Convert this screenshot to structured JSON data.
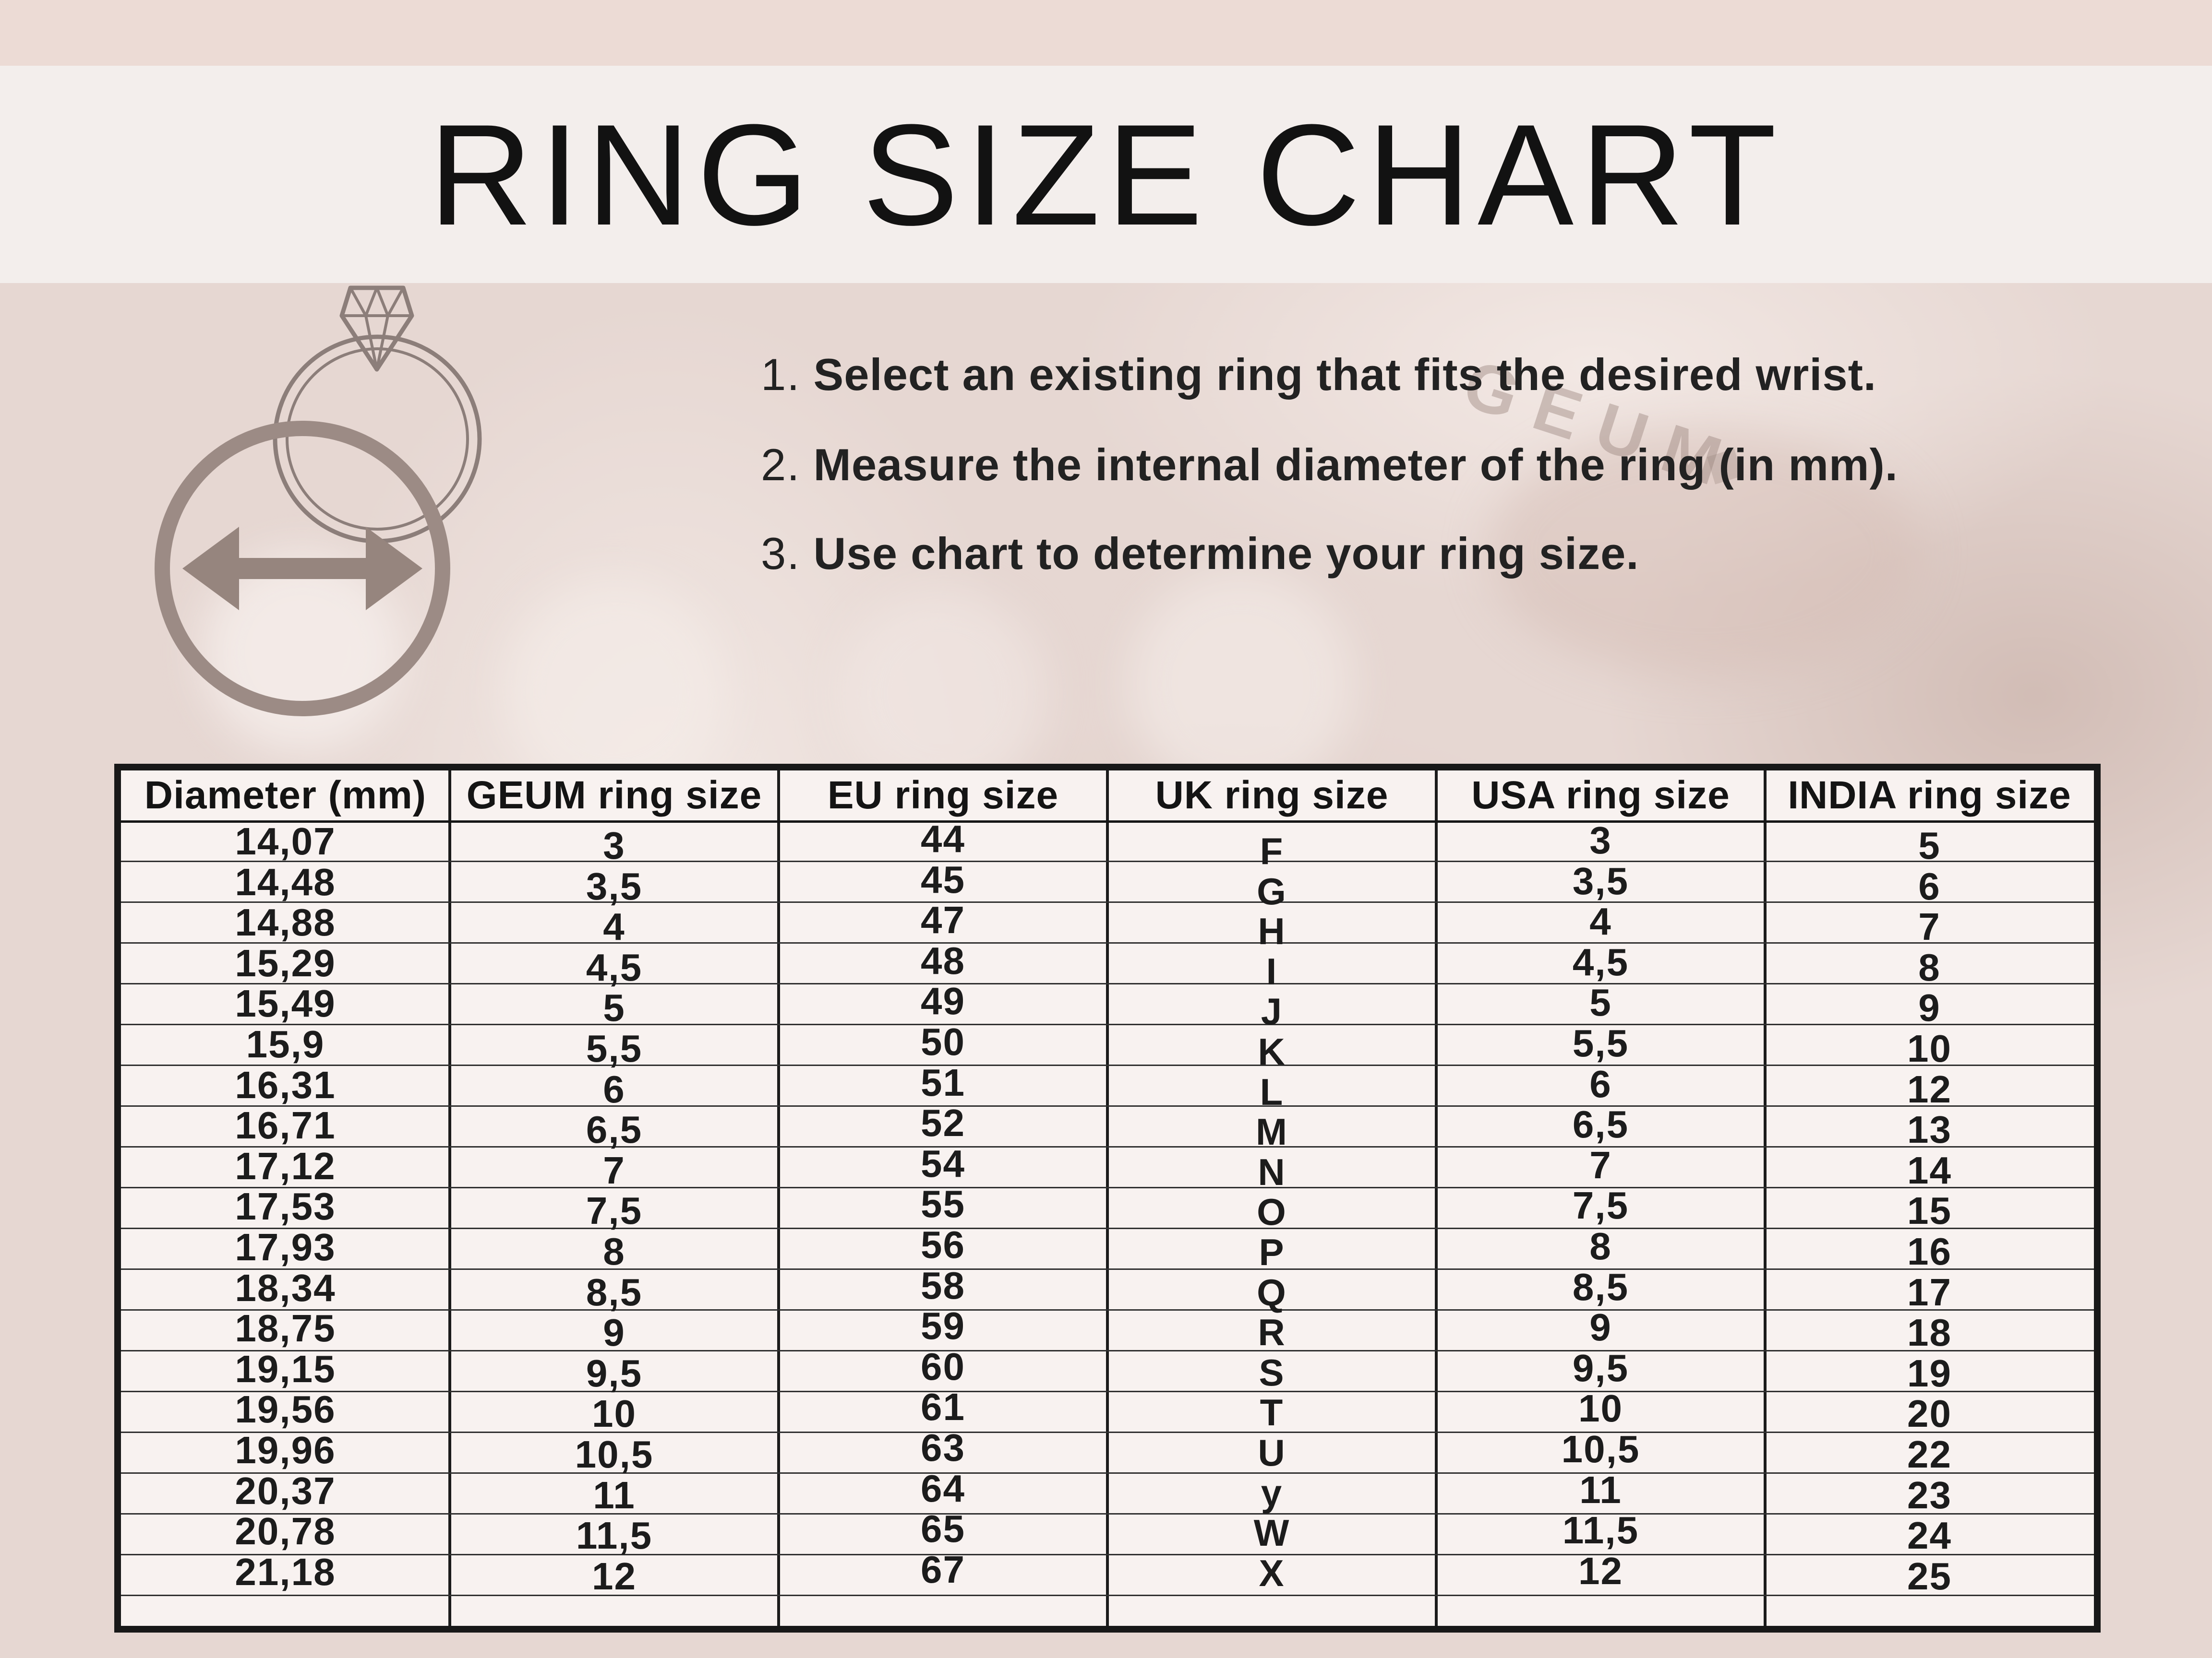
{
  "page": {
    "title": "RING SIZE CHART"
  },
  "instructions": [
    {
      "num": "1.",
      "text": "Select an existing ring that fits the desired wrist."
    },
    {
      "num": "2.",
      "text": "Measure the internal diameter of the ring (in mm)."
    },
    {
      "num": "3.",
      "text": "Use chart to determine your ring size."
    }
  ],
  "background": {
    "engraving": "GEUM",
    "engraving_diamond_glyph": "◆"
  },
  "icons": {
    "diamond_ring": "diamond-ring-outline",
    "measure_circle": "circle-with-horizontal-double-arrow"
  },
  "colors": {
    "top_strip": "#ecdbd5",
    "title_band": "#f3eeec",
    "photo_pink": "#e6d7d2",
    "table_background": "#f8f2f0",
    "border_dark": "#181818",
    "text_dark": "#1c1c1c",
    "icon_taupe": "#9c8b85",
    "ring_outline_taupe": "#8c7e7a"
  },
  "table": {
    "headers": [
      "Diameter (mm)",
      "GEUM ring size",
      "EU ring size",
      "UK ring size",
      "USA ring size",
      "INDIA ring size"
    ],
    "columns": {
      "diameter_mm": [
        "14,07",
        "14,48",
        "14,88",
        "15,29",
        "15,49",
        "15,9",
        "16,31",
        "16,71",
        "17,12",
        "17,53",
        "17,93",
        "18,34",
        "18,75",
        "19,15",
        "19,56",
        "19,96",
        "20,37",
        "20,78",
        "21,18"
      ],
      "geum": [
        "3",
        "3,5",
        "4",
        "4,5",
        "5",
        "5,5",
        "6",
        "6,5",
        "7",
        "7,5",
        "8",
        "8,5",
        "9",
        "9,5",
        "10",
        "10,5",
        "11",
        "11,5",
        "12"
      ],
      "eu": [
        "44",
        "45",
        "47",
        "48",
        "49",
        "50",
        "51",
        "52",
        "54",
        "55",
        "56",
        "58",
        "59",
        "60",
        "61",
        "63",
        "64",
        "65",
        "67"
      ],
      "uk": [
        "F",
        "G",
        "H",
        "I",
        "J",
        "K",
        "L",
        "M",
        "N",
        "O",
        "P",
        "Q",
        "R",
        "S",
        "T",
        "U",
        "y",
        "W",
        "X"
      ],
      "usa": [
        "3",
        "3,5",
        "4",
        "4,5",
        "5",
        "5,5",
        "6",
        "6,5",
        "7",
        "7,5",
        "8",
        "8,5",
        "9",
        "9,5",
        "10",
        "10,5",
        "11",
        "11,5",
        "12"
      ],
      "india": [
        "5",
        "6",
        "7",
        "8",
        "9",
        "10",
        "12",
        "13",
        "14",
        "15",
        "16",
        "17",
        "18",
        "19",
        "20",
        "22",
        "23",
        "24",
        "25"
      ]
    }
  }
}
